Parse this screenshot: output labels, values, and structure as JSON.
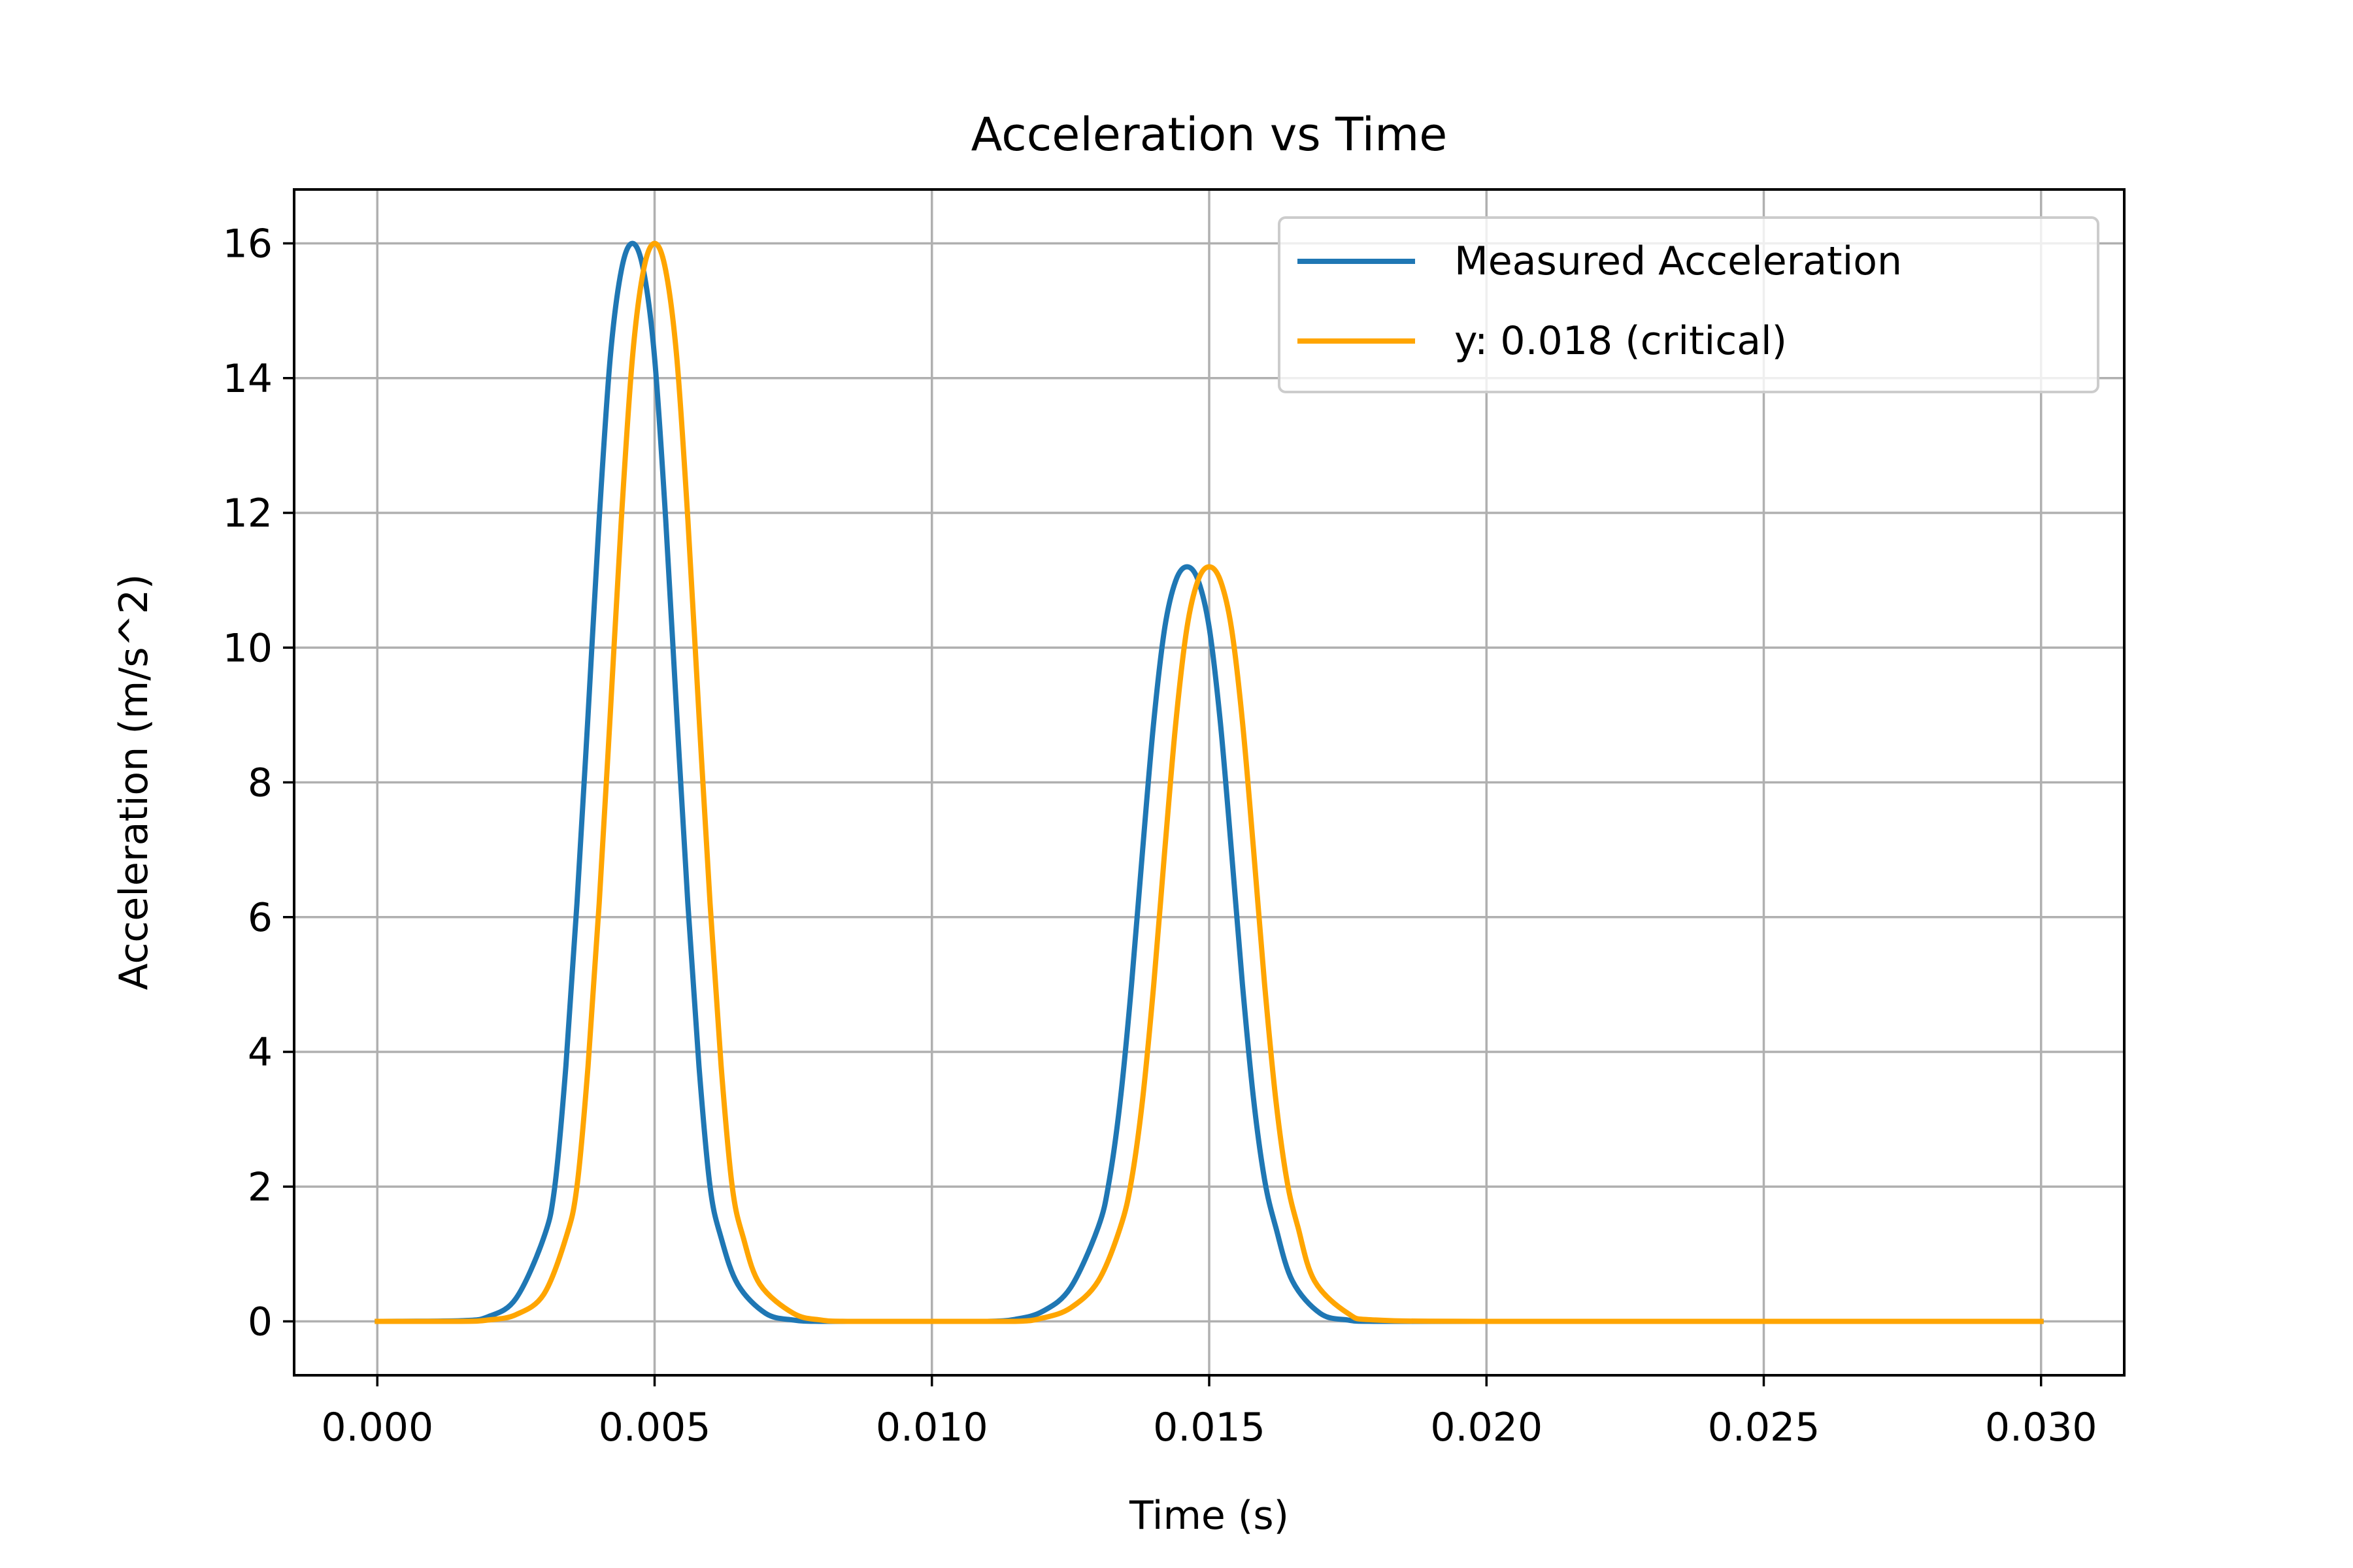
{
  "chart_data": {
    "type": "line",
    "title": "Acceleration vs Time",
    "xlabel": "Time (s)",
    "ylabel": "Acceleration (m/s^2)",
    "xlim": [
      -0.0015,
      0.0315
    ],
    "ylim": [
      -0.8,
      16.8
    ],
    "xticks": [
      0.0,
      0.005,
      0.01,
      0.015,
      0.02,
      0.025,
      0.03
    ],
    "xtick_labels": [
      "0.000",
      "0.005",
      "0.010",
      "0.015",
      "0.020",
      "0.025",
      "0.030"
    ],
    "yticks": [
      0,
      2,
      4,
      6,
      8,
      10,
      12,
      14,
      16
    ],
    "ytick_labels": [
      "0",
      "2",
      "4",
      "6",
      "8",
      "10",
      "12",
      "14",
      "16"
    ],
    "grid": true,
    "legend_position": "top-right",
    "series": [
      {
        "name": "Measured Acceleration",
        "color": "#1f77b4",
        "x": [
          0.0,
          0.0015,
          0.002,
          0.0025,
          0.003,
          0.0032,
          0.0034,
          0.0036,
          0.0038,
          0.004,
          0.0042,
          0.0044,
          0.0046,
          0.0048,
          0.005,
          0.0052,
          0.0054,
          0.0056,
          0.0058,
          0.006,
          0.0062,
          0.0065,
          0.007,
          0.0075,
          0.008,
          0.009,
          0.01,
          0.011,
          0.0115,
          0.012,
          0.0125,
          0.013,
          0.0132,
          0.0134,
          0.0136,
          0.0138,
          0.014,
          0.0142,
          0.0144,
          0.0146,
          0.0148,
          0.015,
          0.0152,
          0.0154,
          0.0156,
          0.0158,
          0.016,
          0.0162,
          0.0165,
          0.017,
          0.0175,
          0.018,
          0.02,
          0.025,
          0.03
        ],
        "y": [
          0.0,
          0.01,
          0.07,
          0.34,
          1.24,
          2.0,
          3.79,
          6.2,
          9.0,
          11.9,
          14.3,
          15.6,
          16.0,
          15.6,
          14.3,
          11.9,
          9.0,
          6.2,
          3.79,
          2.0,
          1.24,
          0.55,
          0.12,
          0.02,
          0.0,
          0.0,
          0.0,
          0.0,
          0.03,
          0.15,
          0.5,
          1.4,
          2.1,
          3.3,
          5.0,
          7.0,
          8.9,
          10.3,
          11.0,
          11.2,
          11.0,
          10.3,
          8.9,
          7.0,
          5.0,
          3.3,
          2.1,
          1.4,
          0.6,
          0.12,
          0.02,
          0.0,
          0.0,
          0.0,
          0.0
        ]
      },
      {
        "name": "y: 0.018 (critical)",
        "color": "#ffa500",
        "x": [
          0.0,
          0.0015,
          0.002,
          0.0025,
          0.003,
          0.0034,
          0.0036,
          0.0038,
          0.004,
          0.0042,
          0.0044,
          0.0046,
          0.0048,
          0.005,
          0.0052,
          0.0054,
          0.0056,
          0.0058,
          0.006,
          0.0062,
          0.0064,
          0.0066,
          0.0069,
          0.0075,
          0.008,
          0.0085,
          0.01,
          0.0115,
          0.012,
          0.0125,
          0.013,
          0.0134,
          0.0136,
          0.0138,
          0.014,
          0.0142,
          0.0144,
          0.0146,
          0.0148,
          0.015,
          0.0152,
          0.0154,
          0.0156,
          0.0158,
          0.016,
          0.0162,
          0.0164,
          0.0166,
          0.0169,
          0.0175,
          0.018,
          0.02,
          0.025,
          0.03
        ],
        "y": [
          0.0,
          0.0,
          0.02,
          0.1,
          0.4,
          1.24,
          2.0,
          3.79,
          6.2,
          9.0,
          11.9,
          14.3,
          15.6,
          16.0,
          15.6,
          14.3,
          11.9,
          9.0,
          6.2,
          3.79,
          2.0,
          1.24,
          0.55,
          0.12,
          0.02,
          0.0,
          0.0,
          0.0,
          0.05,
          0.2,
          0.6,
          1.4,
          2.1,
          3.3,
          5.0,
          7.0,
          8.9,
          10.3,
          11.0,
          11.2,
          11.0,
          10.3,
          8.9,
          7.0,
          5.0,
          3.3,
          2.1,
          1.4,
          0.6,
          0.12,
          0.02,
          0.0,
          0.0,
          0.0
        ]
      }
    ]
  }
}
